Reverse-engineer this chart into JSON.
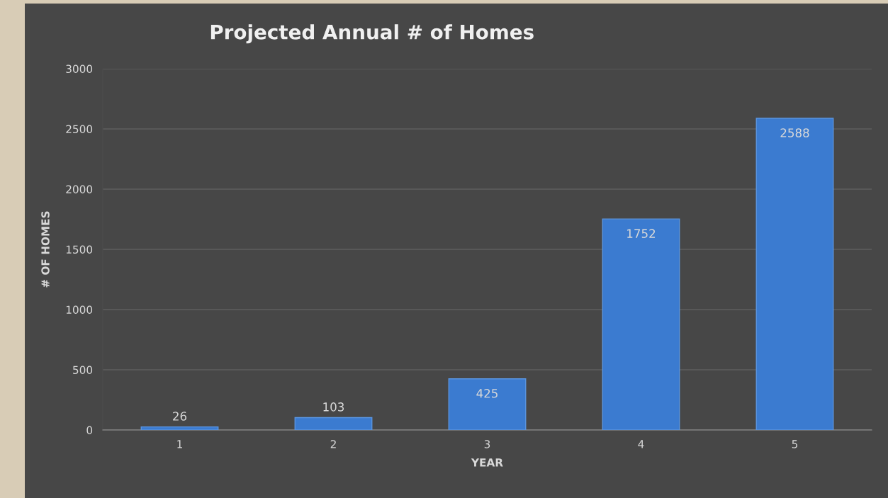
{
  "chart_data": {
    "type": "bar",
    "title": "Projected Annual # of Homes",
    "xlabel": "YEAR",
    "ylabel": "# OF HOMES",
    "categories": [
      "1",
      "2",
      "3",
      "4",
      "5"
    ],
    "values": [
      26,
      103,
      425,
      1752,
      2588
    ],
    "color": "#3b7bd0",
    "ylim": [
      0,
      3000
    ],
    "yticks": [
      0,
      500,
      1000,
      1500,
      2000,
      2500,
      3000
    ],
    "grid": "y",
    "data_labels": true
  }
}
